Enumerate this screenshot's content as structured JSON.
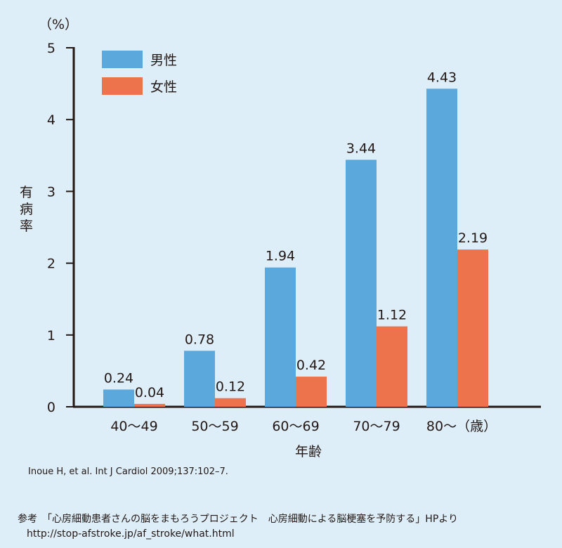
{
  "chart_data": {
    "type": "bar",
    "unit": "（%）",
    "ylabel": "有病率",
    "xlabel": "年齢",
    "categories": [
      "40〜49",
      "50〜59",
      "60〜69",
      "70〜79",
      "80〜（歳）"
    ],
    "series": [
      {
        "name": "男性",
        "color": "#5ba8dc",
        "values": [
          0.24,
          0.78,
          1.94,
          3.44,
          4.43
        ]
      },
      {
        "name": "女性",
        "color": "#ec734b",
        "values": [
          0.04,
          0.12,
          0.42,
          1.12,
          2.19
        ]
      }
    ],
    "ylim": [
      0,
      5
    ],
    "yticks": [
      "0",
      "1",
      "2",
      "3",
      "4",
      "5"
    ],
    "legend": "top-left",
    "grid": false
  },
  "citation": "Inoue H, et al. Int J Cardiol 2009;137:102–7.",
  "reference": "参考　「心房細動患者さんの脳をまもろうプロジェクト　心房細動による脳梗塞を予防する」HPより",
  "url": "http://stop-afstroke.jp/af_stroke/what.html"
}
